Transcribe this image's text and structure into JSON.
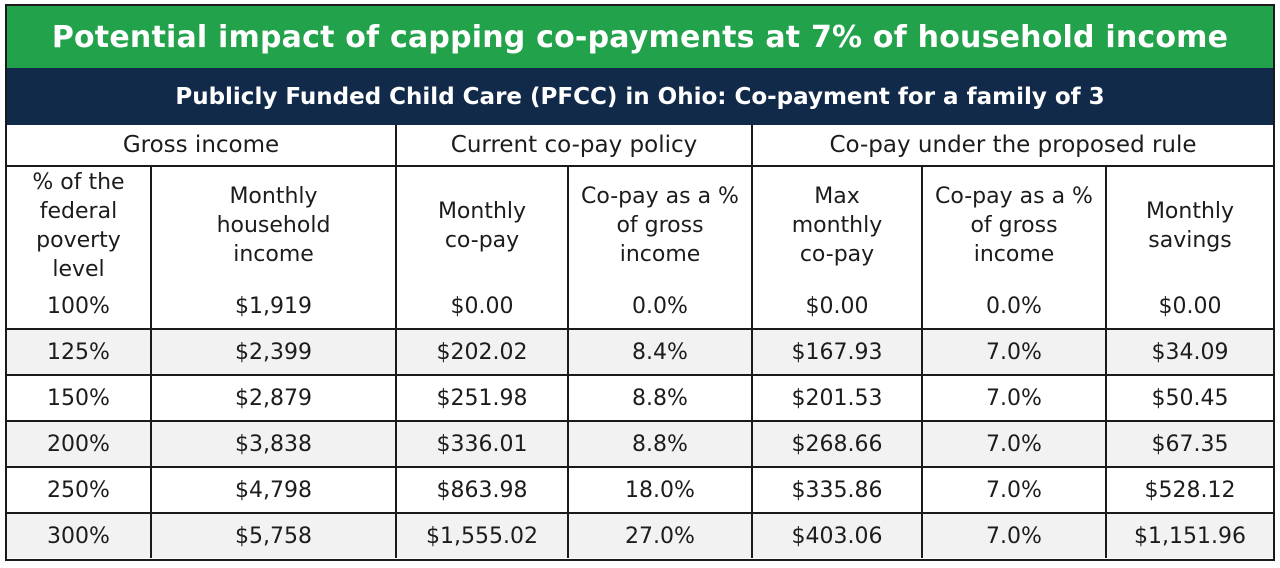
{
  "title": "Potential impact of capping co-payments at 7% of household income",
  "subtitle": "Publicly Funded Child Care (PFCC) in Ohio: Co-payment for a family of 3",
  "colors": {
    "title_bg": "#22a24a",
    "subtitle_bg": "#112a4a"
  },
  "column_groups": [
    "Gross income",
    "Current co-pay policy",
    "Co-pay under the proposed rule"
  ],
  "columns": [
    "% of the federal poverty level",
    "Monthly household income",
    "Monthly co-pay",
    "Co-pay as a % of gross income",
    "Max monthly co-pay",
    "Co-pay as a % of gross income",
    "Monthly savings"
  ],
  "chart_data": {
    "type": "table",
    "rows": [
      [
        "100%",
        "$1,919",
        "$0.00",
        "0.0%",
        "$0.00",
        "0.0%",
        "$0.00"
      ],
      [
        "125%",
        "$2,399",
        "$202.02",
        "8.4%",
        "$167.93",
        "7.0%",
        "$34.09"
      ],
      [
        "150%",
        "$2,879",
        "$251.98",
        "8.8%",
        "$201.53",
        "7.0%",
        "$50.45"
      ],
      [
        "200%",
        "$3,838",
        "$336.01",
        "8.8%",
        "$268.66",
        "7.0%",
        "$67.35"
      ],
      [
        "250%",
        "$4,798",
        "$863.98",
        "18.0%",
        "$335.86",
        "7.0%",
        "$528.12"
      ],
      [
        "300%",
        "$5,758",
        "$1,555.02",
        "27.0%",
        "$403.06",
        "7.0%",
        "$1,151.96"
      ]
    ]
  }
}
